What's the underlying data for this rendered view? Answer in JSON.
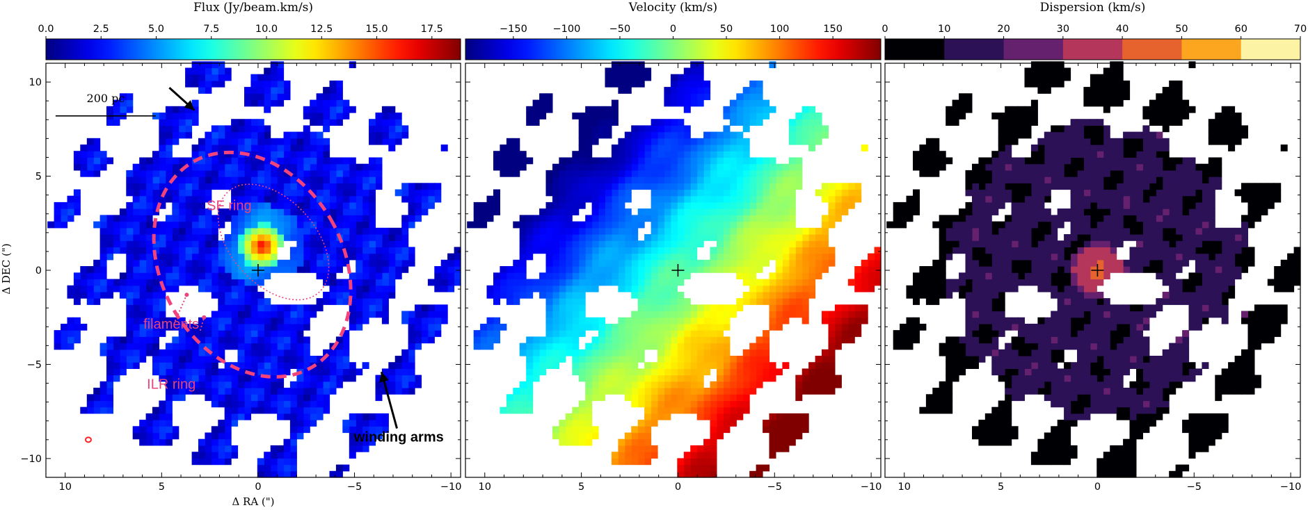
{
  "figure": {
    "xlabel": "Δ RA (\")",
    "ylabel": "Δ DEC (\")"
  },
  "chart_data": [
    {
      "type": "heatmap",
      "colorbar": {
        "label": "Flux (Jy/beam.km/s)",
        "range": [
          0,
          18.8
        ],
        "ticks": [
          0.0,
          2.5,
          5.0,
          7.5,
          10.0,
          12.5,
          15.0,
          17.5
        ],
        "tick_labels": [
          "0.0",
          "2.5",
          "5.0",
          "7.5",
          "10.0",
          "12.5",
          "15.0",
          "17.5"
        ],
        "colormap": "jet"
      },
      "xlim": [
        11,
        -10.5
      ],
      "ylim": [
        -11,
        11
      ],
      "xticks": [
        10,
        5,
        0,
        -5,
        -10
      ],
      "yticks": [
        10,
        5,
        0,
        -5,
        -10
      ],
      "center_marker": [
        0,
        0
      ],
      "scalebar": {
        "label": "200 pc",
        "x": [
          10.5,
          5.3
        ],
        "y": 8.2
      },
      "beam": {
        "x": 8.8,
        "y": -9.0
      },
      "annotations": [
        {
          "text": "SF ring",
          "x": 1.5,
          "y": 3.2
        },
        {
          "text": "filaments",
          "x": 4.5,
          "y": -3.1
        },
        {
          "text": "ILR ring",
          "x": 4.5,
          "y": -6.3
        },
        {
          "text": "winding arms",
          "x": -7.3,
          "y": -9.1
        }
      ],
      "ellipses": [
        {
          "style": "dashed",
          "cx": 0.3,
          "cy": 0.3,
          "rx": 4.7,
          "ry": 6.3,
          "angle": -30
        },
        {
          "style": "dotted",
          "cx": -0.8,
          "cy": 1.5,
          "rx": 2.2,
          "ry": 3.6,
          "angle": -42
        }
      ],
      "arrows": [
        {
          "from": [
            4.6,
            9.7
          ],
          "to": [
            3.3,
            8.5
          ]
        },
        {
          "from": [
            -7.2,
            -8.4
          ],
          "to": [
            -6.4,
            -5.4
          ]
        }
      ]
    },
    {
      "type": "heatmap",
      "colorbar": {
        "label": "Velocity (km/s)",
        "range": [
          -195,
          195
        ],
        "ticks": [
          -150,
          -100,
          -50,
          0,
          50,
          100,
          150
        ],
        "tick_labels": [
          "−150",
          "−100",
          "−50",
          "0",
          "50",
          "100",
          "150"
        ],
        "colormap": "jet"
      },
      "xlim": [
        11,
        -10.5
      ],
      "ylim": [
        -11,
        11
      ],
      "xticks": [
        10,
        5,
        0,
        -5,
        -10
      ],
      "yticks": [
        10,
        5,
        0,
        -5,
        -10
      ],
      "center_marker": [
        0,
        0
      ]
    },
    {
      "type": "heatmap",
      "colorbar": {
        "label": "Dispersion (km/s)",
        "range": [
          0,
          70
        ],
        "ticks": [
          0,
          10,
          20,
          30,
          40,
          50,
          60,
          70
        ],
        "tick_labels": [
          "0",
          "10",
          "20",
          "30",
          "40",
          "50",
          "60",
          "70"
        ],
        "colormap": "inferno-discrete",
        "bins": [
          "#000004",
          "#2c1157",
          "#65206e",
          "#b5365b",
          "#e6632e",
          "#fba61e",
          "#fcf3a4"
        ]
      },
      "xlim": [
        11,
        -10.5
      ],
      "ylim": [
        -11,
        11
      ],
      "xticks": [
        10,
        5,
        0,
        -5,
        -10
      ],
      "yticks": [
        10,
        5,
        0,
        -5,
        -10
      ],
      "center_marker": [
        0,
        0
      ]
    }
  ]
}
